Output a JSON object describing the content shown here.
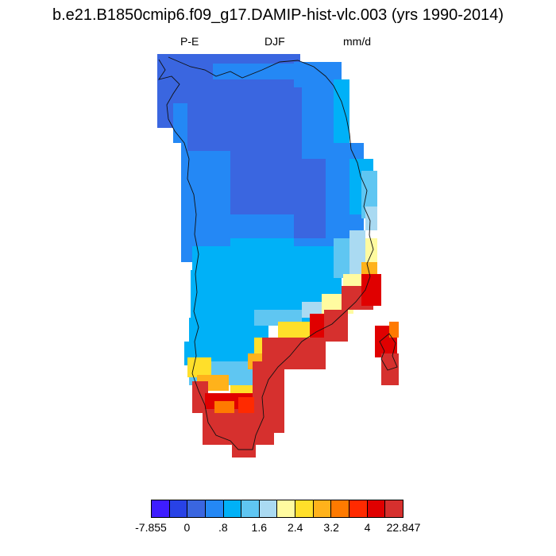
{
  "title": "b.e21.B1850cmip6.f09_g17.DAMIP-hist-vlc.003 (yrs 1990-2014)",
  "subtitle_left": "P-E",
  "subtitle_center": "DJF",
  "subtitle_right": "mm/d",
  "colorbar": {
    "colors": [
      "#3e1cff",
      "#2842e6",
      "#3a66e0",
      "#2488f5",
      "#00b1f7",
      "#5fc6f2",
      "#aadaf2",
      "#fffba0",
      "#ffdf2a",
      "#ffb21b",
      "#ff7a00",
      "#ff2a00",
      "#e00000",
      "#d6302e"
    ],
    "labels": [
      "-7.855",
      "0",
      ".8",
      "1.6",
      "2.4",
      "3.2",
      "4",
      "22.847"
    ]
  }
}
